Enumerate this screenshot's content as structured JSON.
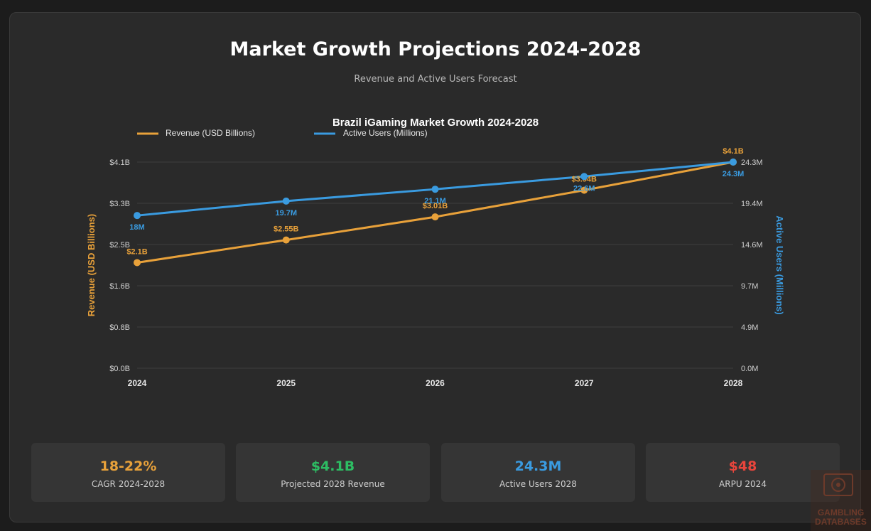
{
  "page": {
    "title": "Market Growth Projections 2024-2028",
    "subtitle": "Revenue and Active Users Forecast"
  },
  "colors": {
    "revenue": "#e8a13a",
    "users": "#3a9be0",
    "green": "#2dbd63",
    "red": "#e8453c",
    "grid": "#3d3d3d"
  },
  "chart_data": {
    "type": "line",
    "title": "Brazil iGaming Market Growth 2024-2028",
    "categories": [
      "2024",
      "2025",
      "2026",
      "2027",
      "2028"
    ],
    "series": [
      {
        "name": "Revenue (USD Billions)",
        "axis": "left",
        "values": [
          2.1,
          2.55,
          3.01,
          3.54,
          4.1
        ],
        "labels": [
          "$2.1B",
          "$2.55B",
          "$3.01B",
          "$3.54B",
          "$4.1B"
        ]
      },
      {
        "name": "Active Users (Millions)",
        "axis": "right",
        "values": [
          18,
          19.7,
          21.1,
          22.6,
          24.3
        ],
        "labels": [
          "18M",
          "19.7M",
          "21.1M",
          "22.6M",
          "24.3M"
        ]
      }
    ],
    "y_left": {
      "label": "Revenue (USD Billions)",
      "range": [
        0,
        4.1
      ],
      "ticks": [
        "$0.0B",
        "$0.8B",
        "$1.6B",
        "$2.5B",
        "$3.3B",
        "$4.1B"
      ]
    },
    "y_right": {
      "label": "Active Users (Millions)",
      "range": [
        0,
        24.3
      ],
      "ticks": [
        "0.0M",
        "4.9M",
        "9.7M",
        "14.6M",
        "19.4M",
        "24.3M"
      ]
    },
    "legend": "top-left",
    "grid": true
  },
  "stats": [
    {
      "value": "18-22%",
      "label": "CAGR 2024-2028",
      "color": "#e8a13a"
    },
    {
      "value": "$4.1B",
      "label": "Projected 2028 Revenue",
      "color": "#2dbd63"
    },
    {
      "value": "24.3M",
      "label": "Active Users 2028",
      "color": "#3a9be0"
    },
    {
      "value": "$48",
      "label": "ARPU 2024",
      "color": "#e8453c"
    }
  ],
  "watermark": {
    "line1": "GAMBLING",
    "line2": "DATABASES"
  }
}
